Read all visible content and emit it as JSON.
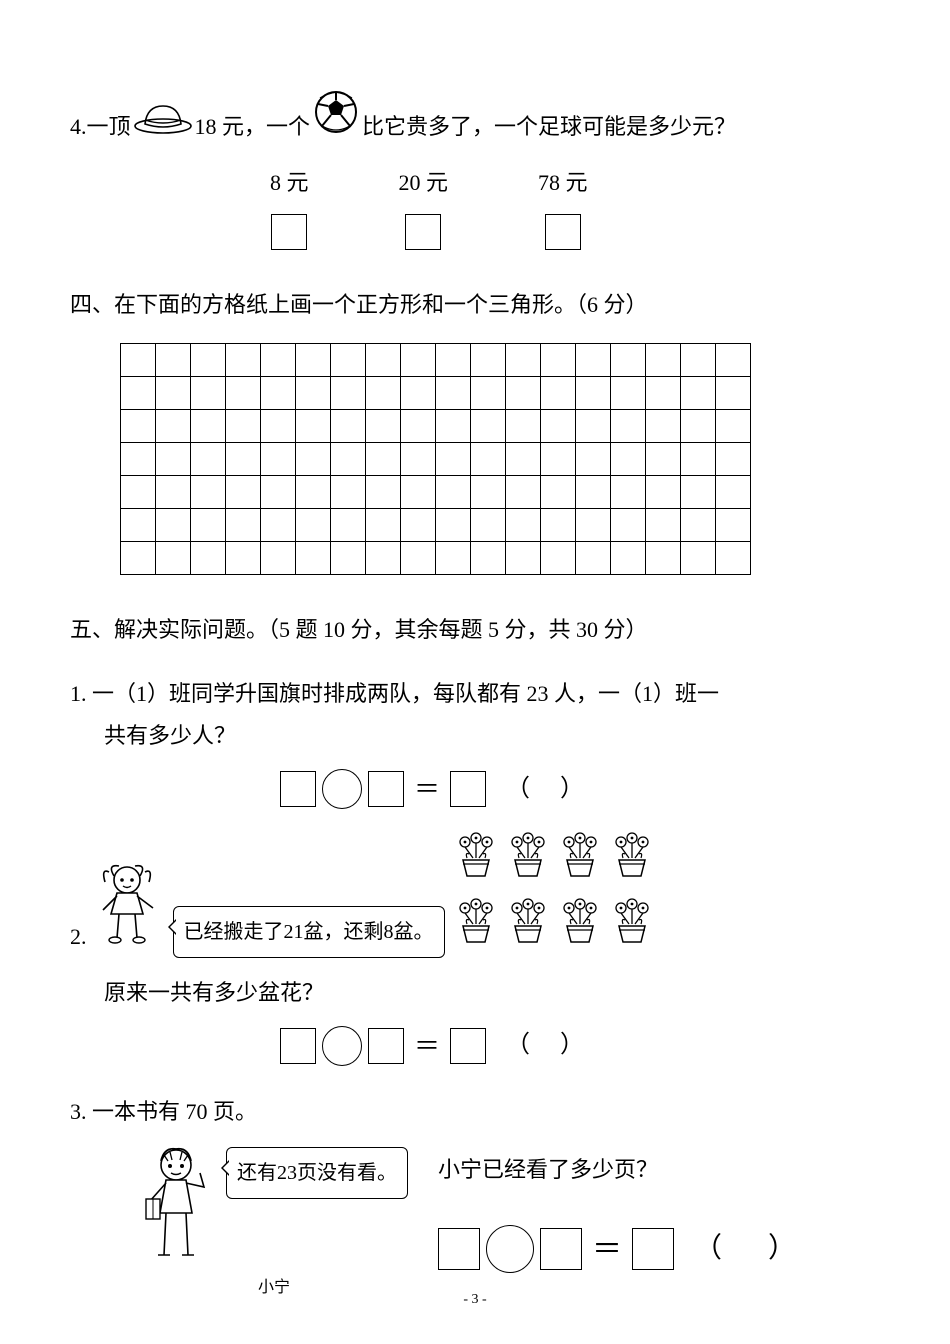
{
  "q4": {
    "prefix_num": "4.",
    "text_a": "一顶",
    "hat_price": "18 元，",
    "text_b": "一个",
    "text_c": "比它贵多了，一个足球可能是多少元？",
    "options": [
      "8 元",
      "20 元",
      "78 元"
    ]
  },
  "section4": {
    "title": "四、在下面的方格纸上画一个正方形和一个三角形。（6 分）",
    "grid": {
      "rows": 7,
      "cols": 18
    }
  },
  "section5": {
    "title": "五、解决实际问题。（5 题 10 分，其余每题 5 分，共 30 分）"
  },
  "q5_1": {
    "num": "1.",
    "line1": " 一（1）班同学升国旗时排成两队，每队都有 23 人，一（1）班一",
    "line2": "共有多少人？",
    "equals": "＝",
    "paren_l": "（",
    "paren_r": "）"
  },
  "q5_2": {
    "num": "2.",
    "bubble": "已经搬走了21盆，还剩8盆。",
    "question": "原来一共有多少盆花？",
    "equals": "＝",
    "paren_l": "（",
    "paren_r": "）",
    "pots_count": 8
  },
  "q5_3": {
    "num": "3.",
    "title": "一本书有 70 页。",
    "bubble": "还有23页没有看。",
    "boy_name": "小宁",
    "question": "小宁已经看了多少页？",
    "equals": "＝",
    "paren_l": "（",
    "paren_r": "）"
  },
  "footer": {
    "page": "- 3 -"
  }
}
